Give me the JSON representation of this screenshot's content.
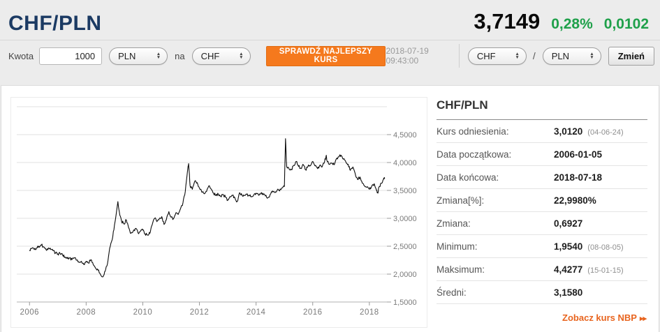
{
  "colors": {
    "navy": "#1b3a63",
    "green": "#1fa04a",
    "orange": "#f5791d",
    "link_orange": "#e8641e",
    "line": "#0b0b0b"
  },
  "header": {
    "title": "CHF/PLN",
    "price": "3,7149",
    "change_percent": "0,28%",
    "change_abs": "0,0102"
  },
  "toolbar": {
    "amount_label": "Kwota",
    "amount_value": "1000",
    "from_currency": "PLN",
    "to_label": "na",
    "to_currency": "CHF",
    "check_button": "SPRAWDŹ NAJLEPSZY KURS",
    "timestamp": "2018-07-19 09:43:00",
    "pair_base": "CHF",
    "pair_separator": "/",
    "pair_quote": "PLN",
    "change_button": "Zmień"
  },
  "icons": {
    "arrow_up": "▲",
    "arrow_down": "▼",
    "link_arrows": "▸▸"
  },
  "stats": {
    "title": "CHF/PLN",
    "rows": [
      {
        "label": "Kurs odniesienia:",
        "value": "3,0120",
        "note": "(04-06-24)"
      },
      {
        "label": "Data początkowa:",
        "value": "2006-01-05",
        "note": ""
      },
      {
        "label": "Data końcowa:",
        "value": "2018-07-18",
        "note": ""
      },
      {
        "label": "Zmiana[%]:",
        "value": "22,9980%",
        "note": ""
      },
      {
        "label": "Zmiana:",
        "value": "0,6927",
        "note": ""
      },
      {
        "label": "Minimum:",
        "value": "1,9540",
        "note": "(08-08-05)"
      },
      {
        "label": "Maksimum:",
        "value": "4,4277",
        "note": "(15-01-15)"
      },
      {
        "label": "Średni:",
        "value": "3,1580",
        "note": ""
      }
    ],
    "link_label": "Zobacz kurs NBP"
  },
  "chart_data": {
    "type": "line",
    "title": "",
    "xlabel": "",
    "ylabel": "",
    "legend": false,
    "grid": true,
    "xlim": [
      2005.55,
      2018.62
    ],
    "ylim": [
      1.5,
      5.0
    ],
    "x_ticks": [
      2006,
      2008,
      2010,
      2012,
      2014,
      2016,
      2018
    ],
    "y_tick_labels": [
      "4,5000",
      "4,0000",
      "3,5000",
      "3,0000",
      "2,5000",
      "2,0000",
      "1,5000"
    ],
    "y_tick_values": [
      4.5,
      4.0,
      3.5,
      3.0,
      2.5,
      2.0,
      1.5
    ],
    "grid_values": [
      5.0,
      4.5,
      4.0,
      3.5,
      3.0,
      2.5,
      2.0
    ],
    "series": [
      {
        "name": "CHF/PLN",
        "points": [
          [
            2006.0,
            2.43
          ],
          [
            2006.08,
            2.46
          ],
          [
            2006.17,
            2.44
          ],
          [
            2006.25,
            2.47
          ],
          [
            2006.33,
            2.5
          ],
          [
            2006.42,
            2.52
          ],
          [
            2006.5,
            2.49
          ],
          [
            2006.58,
            2.44
          ],
          [
            2006.67,
            2.47
          ],
          [
            2006.75,
            2.44
          ],
          [
            2006.83,
            2.42
          ],
          [
            2006.92,
            2.38
          ],
          [
            2007.0,
            2.36
          ],
          [
            2007.08,
            2.37
          ],
          [
            2007.17,
            2.34
          ],
          [
            2007.25,
            2.31
          ],
          [
            2007.33,
            2.28
          ],
          [
            2007.42,
            2.29
          ],
          [
            2007.5,
            2.26
          ],
          [
            2007.58,
            2.29
          ],
          [
            2007.67,
            2.25
          ],
          [
            2007.75,
            2.21
          ],
          [
            2007.83,
            2.23
          ],
          [
            2007.92,
            2.17
          ],
          [
            2008.0,
            2.23
          ],
          [
            2008.08,
            2.2
          ],
          [
            2008.17,
            2.26
          ],
          [
            2008.25,
            2.17
          ],
          [
            2008.33,
            2.11
          ],
          [
            2008.42,
            2.07
          ],
          [
            2008.5,
            2.0
          ],
          [
            2008.6,
            1.954
          ],
          [
            2008.67,
            2.05
          ],
          [
            2008.75,
            2.18
          ],
          [
            2008.83,
            2.46
          ],
          [
            2008.92,
            2.62
          ],
          [
            2009.0,
            2.88
          ],
          [
            2009.12,
            3.3
          ],
          [
            2009.17,
            3.12
          ],
          [
            2009.25,
            2.95
          ],
          [
            2009.33,
            2.9
          ],
          [
            2009.42,
            2.97
          ],
          [
            2009.5,
            2.83
          ],
          [
            2009.58,
            2.73
          ],
          [
            2009.67,
            2.78
          ],
          [
            2009.75,
            2.82
          ],
          [
            2009.83,
            2.74
          ],
          [
            2009.92,
            2.77
          ],
          [
            2010.0,
            2.79
          ],
          [
            2010.08,
            2.72
          ],
          [
            2010.17,
            2.7
          ],
          [
            2010.25,
            2.73
          ],
          [
            2010.33,
            2.88
          ],
          [
            2010.42,
            3.0
          ],
          [
            2010.5,
            2.94
          ],
          [
            2010.58,
            2.99
          ],
          [
            2010.67,
            3.03
          ],
          [
            2010.75,
            2.89
          ],
          [
            2010.83,
            2.97
          ],
          [
            2010.92,
            3.12
          ],
          [
            2011.0,
            3.02
          ],
          [
            2011.08,
            2.99
          ],
          [
            2011.17,
            3.1
          ],
          [
            2011.25,
            3.07
          ],
          [
            2011.33,
            3.17
          ],
          [
            2011.42,
            3.28
          ],
          [
            2011.5,
            3.48
          ],
          [
            2011.58,
            3.85
          ],
          [
            2011.62,
            3.98
          ],
          [
            2011.67,
            3.58
          ],
          [
            2011.75,
            3.52
          ],
          [
            2011.83,
            3.66
          ],
          [
            2011.92,
            3.64
          ],
          [
            2012.0,
            3.54
          ],
          [
            2012.08,
            3.47
          ],
          [
            2012.17,
            3.44
          ],
          [
            2012.25,
            3.48
          ],
          [
            2012.33,
            3.58
          ],
          [
            2012.42,
            3.52
          ],
          [
            2012.5,
            3.45
          ],
          [
            2012.58,
            3.41
          ],
          [
            2012.67,
            3.43
          ],
          [
            2012.75,
            3.4
          ],
          [
            2012.83,
            3.43
          ],
          [
            2012.92,
            3.38
          ],
          [
            2013.0,
            3.33
          ],
          [
            2013.08,
            3.39
          ],
          [
            2013.17,
            3.41
          ],
          [
            2013.25,
            3.37
          ],
          [
            2013.33,
            3.3
          ],
          [
            2013.42,
            3.46
          ],
          [
            2013.5,
            3.42
          ],
          [
            2013.58,
            3.41
          ],
          [
            2013.67,
            3.43
          ],
          [
            2013.75,
            3.41
          ],
          [
            2013.83,
            3.39
          ],
          [
            2013.92,
            3.42
          ],
          [
            2014.0,
            3.45
          ],
          [
            2014.08,
            3.42
          ],
          [
            2014.17,
            3.45
          ],
          [
            2014.25,
            3.42
          ],
          [
            2014.33,
            3.4
          ],
          [
            2014.42,
            3.37
          ],
          [
            2014.5,
            3.43
          ],
          [
            2014.58,
            3.49
          ],
          [
            2014.67,
            3.46
          ],
          [
            2014.75,
            3.51
          ],
          [
            2014.83,
            3.49
          ],
          [
            2014.92,
            3.55
          ],
          [
            2015.0,
            3.57
          ],
          [
            2015.04,
            4.4277
          ],
          [
            2015.07,
            4.02
          ],
          [
            2015.08,
            3.93
          ],
          [
            2015.17,
            3.88
          ],
          [
            2015.25,
            3.87
          ],
          [
            2015.33,
            3.95
          ],
          [
            2015.42,
            4.02
          ],
          [
            2015.5,
            3.93
          ],
          [
            2015.58,
            3.9
          ],
          [
            2015.67,
            3.96
          ],
          [
            2015.75,
            3.87
          ],
          [
            2015.83,
            3.93
          ],
          [
            2015.92,
            3.94
          ],
          [
            2016.0,
            4.02
          ],
          [
            2016.08,
            3.94
          ],
          [
            2016.17,
            3.89
          ],
          [
            2016.25,
            3.95
          ],
          [
            2016.33,
            3.92
          ],
          [
            2016.42,
            4.02
          ],
          [
            2016.48,
            4.13
          ],
          [
            2016.5,
            4.04
          ],
          [
            2016.58,
            3.97
          ],
          [
            2016.67,
            3.99
          ],
          [
            2016.75,
            3.96
          ],
          [
            2016.83,
            4.06
          ],
          [
            2016.92,
            4.1
          ],
          [
            2017.0,
            4.13
          ],
          [
            2017.08,
            4.06
          ],
          [
            2017.17,
            4.01
          ],
          [
            2017.25,
            3.97
          ],
          [
            2017.33,
            3.86
          ],
          [
            2017.42,
            3.92
          ],
          [
            2017.5,
            3.8
          ],
          [
            2017.58,
            3.7
          ],
          [
            2017.67,
            3.74
          ],
          [
            2017.75,
            3.63
          ],
          [
            2017.83,
            3.58
          ],
          [
            2017.92,
            3.56
          ],
          [
            2018.0,
            3.52
          ],
          [
            2018.08,
            3.57
          ],
          [
            2018.17,
            3.62
          ],
          [
            2018.25,
            3.5
          ],
          [
            2018.3,
            3.45
          ],
          [
            2018.33,
            3.55
          ],
          [
            2018.42,
            3.63
          ],
          [
            2018.5,
            3.7
          ],
          [
            2018.54,
            3.715
          ]
        ]
      }
    ]
  }
}
